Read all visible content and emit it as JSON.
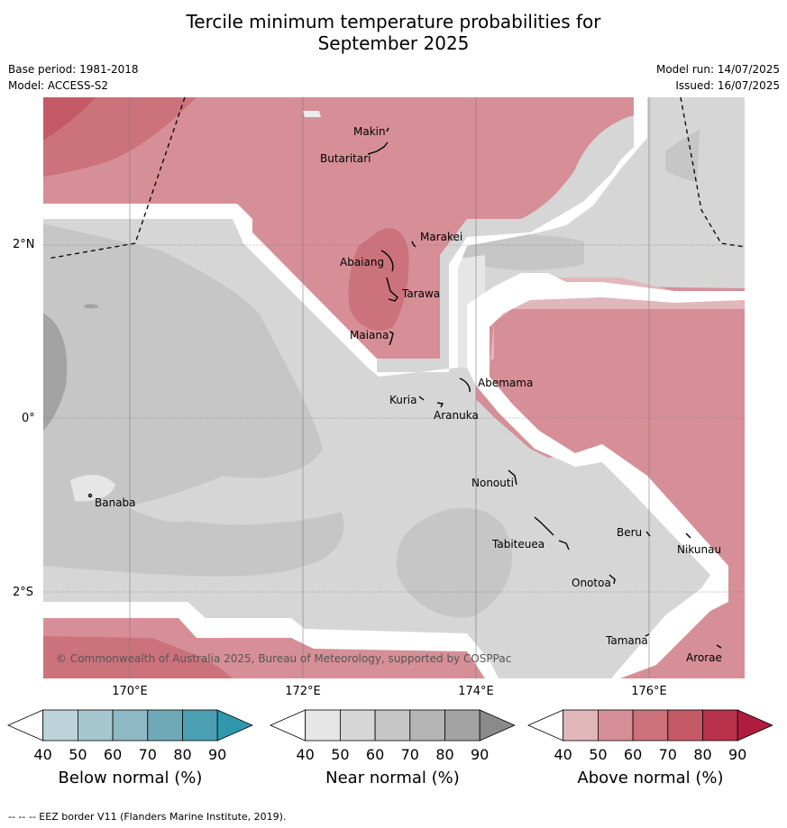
{
  "title_line1": "Tercile minimum temperature probabilities for",
  "title_line2": "September 2025",
  "meta": {
    "base_period": "Base period: 1981-2018",
    "model": "Model: ACCESS-S2",
    "model_run": "Model run: 14/07/2025",
    "issued": "Issued: 16/07/2025"
  },
  "axes": {
    "lat_labels": [
      "2°N",
      "0°",
      "2°S"
    ],
    "lon_labels": [
      "170°E",
      "172°E",
      "174°E",
      "176°E"
    ]
  },
  "islands": [
    "Makin",
    "Butaritari",
    "Marakei",
    "Abaiang",
    "Tarawa",
    "Maiana",
    "Abemama",
    "Kuria",
    "Aranuka",
    "Nonouti",
    "Banaba",
    "Tabiteuea",
    "Beru",
    "Nikunau",
    "Onotoa",
    "Tamana",
    "Arorae"
  ],
  "copyright": "© Commonwealth of Australia 2025, Bureau of Meteorology, supported by COSPPac",
  "colorbars": [
    {
      "title": "Below normal (%)",
      "ticks": [
        "40",
        "50",
        "60",
        "70",
        "80",
        "90"
      ],
      "colors": [
        "#ffffff",
        "#bcd3da",
        "#a6c7cf",
        "#8eb8c4",
        "#6fa9b8",
        "#4aa0b2",
        "#2f98ad"
      ]
    },
    {
      "title": "Near normal (%)",
      "ticks": [
        "40",
        "50",
        "60",
        "70",
        "80",
        "90"
      ],
      "colors": [
        "#ffffff",
        "#e6e6e6",
        "#d6d6d6",
        "#c6c6c6",
        "#b4b4b4",
        "#a3a3a3",
        "#8a8a8a"
      ]
    },
    {
      "title": "Above normal (%)",
      "ticks": [
        "40",
        "50",
        "60",
        "70",
        "80",
        "90"
      ],
      "colors": [
        "#ffffff",
        "#e1b7bb",
        "#d68f96",
        "#cc727b",
        "#c45a66",
        "#b8324a",
        "#b01c3e"
      ]
    }
  ],
  "footnote": "--  --  -- EEZ border V11 (Flanders Marine Institute, 2019)."
}
